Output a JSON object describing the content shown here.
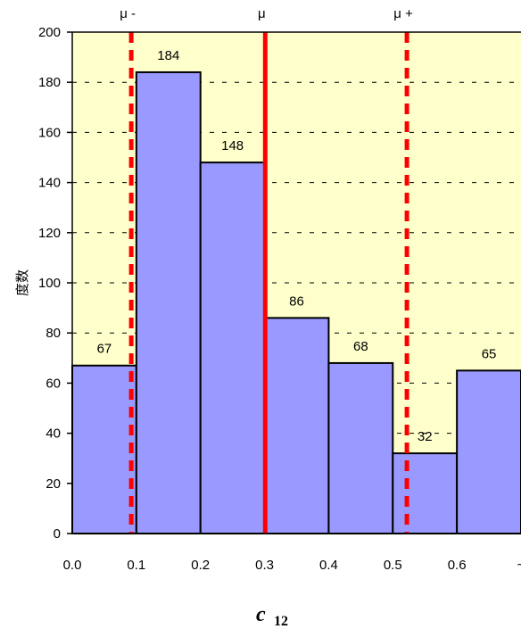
{
  "chart_data": {
    "type": "bar",
    "title": "",
    "xlabel": "c",
    "xlabel_subscript": "12",
    "ylabel": "度数",
    "ylim": [
      0,
      200
    ],
    "yticks": [
      0,
      20,
      40,
      60,
      80,
      100,
      120,
      140,
      160,
      180,
      200
    ],
    "xticks": [
      "0.0",
      "0.1",
      "0.2",
      "0.3",
      "0.4",
      "0.5",
      "0.6",
      "~"
    ],
    "bins": [
      {
        "from": 0.0,
        "to": 0.1,
        "value": 67
      },
      {
        "from": 0.1,
        "to": 0.2,
        "value": 184
      },
      {
        "from": 0.2,
        "to": 0.3,
        "value": 148
      },
      {
        "from": 0.3,
        "to": 0.4,
        "value": 86
      },
      {
        "from": 0.4,
        "to": 0.5,
        "value": 68
      },
      {
        "from": 0.5,
        "to": 0.6,
        "value": 32
      },
      {
        "from": 0.6,
        "to": 0.7,
        "value": 65
      }
    ],
    "grid": true,
    "markers": [
      {
        "label": "μ -",
        "x": 0.092,
        "style": "dashed"
      },
      {
        "label": "μ",
        "x": 0.301,
        "style": "solid"
      },
      {
        "label": "μ +",
        "x": 0.522,
        "style": "dashed"
      }
    ],
    "colors": {
      "bar_fill": "#9999ff",
      "bar_stroke": "#000000",
      "plot_background": "#ffffcc",
      "marker_line": "#ff0000",
      "grid": "#000000"
    }
  }
}
